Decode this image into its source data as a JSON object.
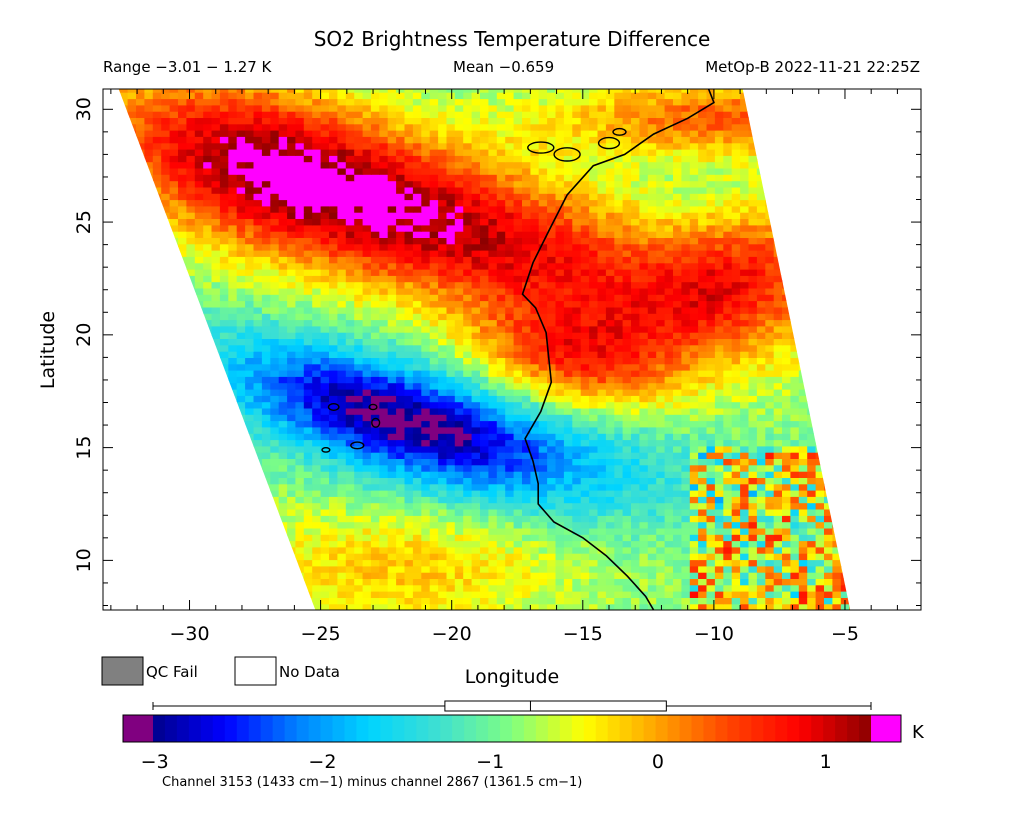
{
  "chart_data": {
    "type": "heatmap",
    "title": "SO2 Brightness Temperature Difference",
    "header": {
      "range_text": "Range −3.01 − 1.27 K",
      "mean_text": "Mean −0.659",
      "platform_text": "MetOp-B 2022-11-21 22:25Z"
    },
    "stats": {
      "min": -3.01,
      "max": 1.27,
      "mean": -0.659,
      "units": "K"
    },
    "xlabel": "Longitude",
    "ylabel": "Latitude",
    "xlim": [
      -33.3,
      -2.1
    ],
    "ylim": [
      7.8,
      30.9
    ],
    "xticks": [
      -30,
      -25,
      -20,
      -15,
      -10,
      -5
    ],
    "xtick_labels": [
      "−30",
      "−25",
      "−20",
      "−15",
      "−10",
      "−5"
    ],
    "yticks": [
      10,
      15,
      20,
      25,
      30
    ],
    "ytick_labels": [
      "10",
      "15",
      "20",
      "25",
      "30"
    ],
    "swath": {
      "top_left": [
        -32.7,
        30.9
      ],
      "top_right": [
        -8.9,
        30.9
      ],
      "bottom_left": [
        -25.2,
        7.8
      ],
      "bottom_right": [
        -4.8,
        7.8
      ]
    },
    "field_features": [
      {
        "label": "warm plume core",
        "centre": [
          -21,
          24
        ],
        "value": 0.9
      },
      {
        "label": "warm plume coastal tip",
        "centre": [
          -15.5,
          18.3
        ],
        "value": 1.1
      },
      {
        "label": "warm band north-east",
        "centre": [
          -9,
          23
        ],
        "value": 0.7
      },
      {
        "label": "cold anomaly",
        "centre": [
          -23.5,
          16.5
        ],
        "value": -2.7
      },
      {
        "label": "background",
        "value": -0.9
      }
    ],
    "colorbar": {
      "min": -3.2,
      "max": 1.35,
      "ticks": [
        -3,
        -2,
        -1,
        0,
        1
      ],
      "tick_labels": [
        "−3",
        "−2",
        "−1",
        "0",
        "1"
      ],
      "unit_label": "K",
      "under_color": "#800080",
      "over_color": "#ff00ff",
      "colors": [
        "#00008b",
        "#0000ff",
        "#0080ff",
        "#00d4ff",
        "#40e0d0",
        "#80ff80",
        "#ffff00",
        "#ffa500",
        "#ff4500",
        "#ff0000",
        "#8b0000"
      ]
    },
    "boxplot": {
      "whisker_low": -3.01,
      "q1": -1.27,
      "median": -0.76,
      "q3": 0.05,
      "whisker_high": 1.27
    },
    "legend": [
      {
        "label": "QC Fail",
        "color": "#808080"
      },
      {
        "label": "No Data",
        "color": "#ffffff"
      }
    ],
    "footnote": "Channel 3153 (1433 cm−1) minus channel 2867 (1361.5 cm−1)"
  }
}
